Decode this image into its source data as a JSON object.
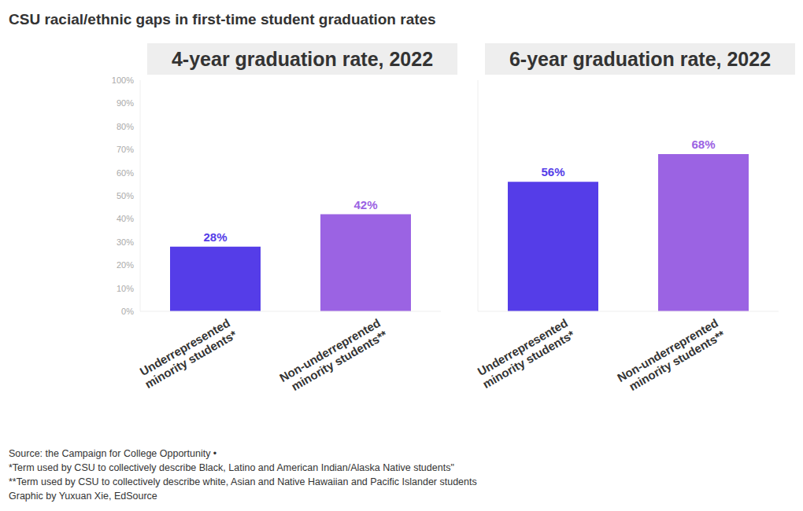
{
  "title": "CSU racial/ethnic gaps in first-time student graduation rates",
  "chart_data": [
    {
      "type": "bar",
      "title": "4-year graduation rate, 2022",
      "categories": [
        "Underrepresented minority students*",
        "Non-underreprented minority students**"
      ],
      "values": [
        28,
        42
      ],
      "value_labels": [
        "28%",
        "42%"
      ],
      "colors": [
        "#553de8",
        "#9b63e3"
      ],
      "ylim": [
        0,
        100
      ],
      "yticks": [
        {
          "value": 0,
          "label": "0%"
        },
        {
          "value": 10,
          "label": "10%"
        },
        {
          "value": 20,
          "label": "20%"
        },
        {
          "value": 30,
          "label": "30%"
        },
        {
          "value": 40,
          "label": "40%"
        },
        {
          "value": 50,
          "label": "50%"
        },
        {
          "value": 60,
          "label": "60%"
        },
        {
          "value": 70,
          "label": "70%"
        },
        {
          "value": 80,
          "label": "80%"
        },
        {
          "value": 90,
          "label": "90%"
        },
        {
          "value": 100,
          "label": "100%"
        }
      ],
      "grid": false,
      "data_labels": true
    },
    {
      "type": "bar",
      "title": "6-year graduation rate, 2022",
      "categories": [
        "Underrepresented minority students*",
        "Non-underreprented minority students**"
      ],
      "values": [
        56,
        68
      ],
      "value_labels": [
        "56%",
        "68%"
      ],
      "colors": [
        "#553de8",
        "#9b63e3"
      ],
      "ylim": [
        0,
        100
      ],
      "grid": false,
      "data_labels": true,
      "tick_labels": "x"
    }
  ],
  "notes": [
    "Source: the Campaign for College Opportunity •",
    "*Term used by CSU to collectively describe Black, Latino and American Indian/Alaska Native students\"",
    "**Term used by CSU to collectively describe white, Asian and Native Hawaiian and Pacific Islander students",
    "Graphic by Yuxuan Xie, EdSource"
  ]
}
